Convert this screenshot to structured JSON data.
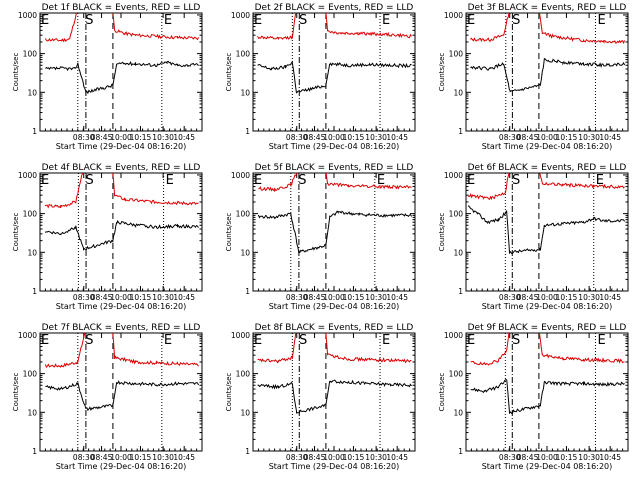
{
  "chart_data": {
    "type": "line",
    "start_time": "29-Dec-04 08:16:20",
    "xlabel": "Start Time (29-Dec-04 08:16:20)",
    "ylabel": "Counts/sec",
    "ylog": true,
    "ylim": [
      1,
      1000
    ],
    "y_tick_labels": [
      "1",
      "10",
      "100",
      "1000"
    ],
    "x_tick_labels": [
      "08:30",
      "08:45",
      "10:00",
      "10:15",
      "10:30",
      "10:45"
    ],
    "series_colors": {
      "events": "#000000",
      "lld": "#dd0000"
    },
    "panels": [
      {
        "title": "Det 1f BLACK = Events, RED = LLD",
        "markers": [
          {
            "label": "E",
            "time": "08:16"
          },
          {
            "label": "S",
            "time": "08:32"
          },
          {
            "label": "E",
            "time": "10:33"
          }
        ],
        "vlines": [
          {
            "time": "08:30",
            "style": "dotted"
          },
          {
            "time": "08:33",
            "style": "dash-dot"
          },
          {
            "time": "10:05",
            "style": "dashed"
          },
          {
            "time": "10:33",
            "style": "dotted"
          }
        ],
        "gap": [
          "08:34",
          "10:05"
        ],
        "events": [
          [
            8.3,
            40
          ],
          [
            8.4,
            42
          ],
          [
            8.48,
            40
          ],
          [
            8.5,
            55
          ],
          [
            8.55,
            10
          ],
          [
            10.08,
            15
          ],
          [
            10.12,
            55
          ],
          [
            10.3,
            55
          ],
          [
            10.5,
            50
          ],
          [
            10.6,
            60
          ],
          [
            10.7,
            50
          ],
          [
            10.8,
            50
          ],
          [
            10.9,
            52
          ]
        ],
        "lld": [
          [
            8.3,
            230
          ],
          [
            8.4,
            220
          ],
          [
            8.45,
            240
          ],
          [
            8.5,
            1500
          ],
          [
            10.06,
            1500
          ],
          [
            10.1,
            400
          ],
          [
            10.2,
            330
          ],
          [
            10.3,
            300
          ],
          [
            10.5,
            280
          ],
          [
            10.7,
            260
          ],
          [
            10.9,
            250
          ]
        ]
      },
      {
        "title": "Det 2f BLACK = Events, RED = LLD",
        "markers": [
          {
            "label": "E",
            "time": "08:16"
          },
          {
            "label": "S",
            "time": "08:35"
          },
          {
            "label": "E",
            "time": "10:36"
          }
        ],
        "vlines": [
          {
            "time": "08:33",
            "style": "dotted"
          },
          {
            "time": "08:36",
            "style": "dash-dot"
          },
          {
            "time": "10:05",
            "style": "dashed"
          },
          {
            "time": "10:36",
            "style": "dotted"
          }
        ],
        "gap": [
          "08:37",
          "10:05"
        ],
        "events": [
          [
            8.3,
            50
          ],
          [
            8.4,
            40
          ],
          [
            8.5,
            45
          ],
          [
            8.55,
            60
          ],
          [
            8.58,
            10
          ],
          [
            10.08,
            15
          ],
          [
            10.12,
            55
          ],
          [
            10.3,
            50
          ],
          [
            10.5,
            52
          ],
          [
            10.7,
            50
          ],
          [
            10.9,
            48
          ]
        ],
        "lld": [
          [
            8.3,
            270
          ],
          [
            8.45,
            240
          ],
          [
            8.55,
            270
          ],
          [
            8.58,
            1500
          ],
          [
            10.06,
            1500
          ],
          [
            10.1,
            380
          ],
          [
            10.2,
            340
          ],
          [
            10.4,
            330
          ],
          [
            10.6,
            320
          ],
          [
            10.9,
            280
          ]
        ]
      },
      {
        "title": "Det 3f BLACK = Events, RED = LLD",
        "markers": [
          {
            "label": "E",
            "time": "08:16"
          },
          {
            "label": "S",
            "time": "08:36"
          },
          {
            "label": "E",
            "time": "10:37"
          }
        ],
        "vlines": [
          {
            "time": "08:34",
            "style": "dotted"
          },
          {
            "time": "08:37",
            "style": "dash-dot"
          },
          {
            "time": "10:04",
            "style": "dashed"
          },
          {
            "time": "10:37",
            "style": "dotted"
          }
        ],
        "gap": [
          "08:38",
          "10:04"
        ],
        "events": [
          [
            8.3,
            45
          ],
          [
            8.45,
            40
          ],
          [
            8.55,
            55
          ],
          [
            8.6,
            10
          ],
          [
            10.08,
            15
          ],
          [
            10.12,
            70
          ],
          [
            10.3,
            60
          ],
          [
            10.5,
            55
          ],
          [
            10.7,
            50
          ],
          [
            10.9,
            55
          ]
        ],
        "lld": [
          [
            8.3,
            230
          ],
          [
            8.45,
            230
          ],
          [
            8.55,
            300
          ],
          [
            8.6,
            1500
          ],
          [
            10.06,
            1500
          ],
          [
            10.1,
            350
          ],
          [
            10.2,
            280
          ],
          [
            10.5,
            220
          ],
          [
            10.7,
            210
          ],
          [
            10.9,
            200
          ]
        ]
      },
      {
        "title": "Det 4f BLACK = Events, RED = LLD",
        "markers": [
          {
            "label": "E",
            "time": "08:16"
          },
          {
            "label": "S",
            "time": "08:33"
          },
          {
            "label": "E",
            "time": "10:34"
          }
        ],
        "vlines": [
          {
            "time": "08:31",
            "style": "dotted"
          },
          {
            "time": "08:34",
            "style": "dash-dot"
          },
          {
            "time": "10:05",
            "style": "dashed"
          },
          {
            "time": "10:34",
            "style": "dotted"
          }
        ],
        "gap": [
          "08:35",
          "10:05"
        ],
        "events": [
          [
            8.3,
            35
          ],
          [
            8.4,
            30
          ],
          [
            8.5,
            45
          ],
          [
            8.55,
            12
          ],
          [
            10.08,
            20
          ],
          [
            10.12,
            60
          ],
          [
            10.3,
            50
          ],
          [
            10.5,
            45
          ],
          [
            10.7,
            48
          ],
          [
            10.9,
            45
          ]
        ],
        "lld": [
          [
            8.3,
            160
          ],
          [
            8.4,
            150
          ],
          [
            8.5,
            200
          ],
          [
            8.55,
            1500
          ],
          [
            10.06,
            1500
          ],
          [
            10.1,
            300
          ],
          [
            10.2,
            230
          ],
          [
            10.5,
            200
          ],
          [
            10.7,
            190
          ],
          [
            10.9,
            180
          ]
        ]
      },
      {
        "title": "Det 5f BLACK = Events, RED = LLD",
        "markers": [
          {
            "label": "E",
            "time": "08:16"
          },
          {
            "label": "S",
            "time": "08:32"
          },
          {
            "label": "E",
            "time": "10:33"
          }
        ],
        "vlines": [
          {
            "time": "08:30",
            "style": "dotted"
          },
          {
            "time": "08:33",
            "style": "dash-dot"
          },
          {
            "time": "10:05",
            "style": "dashed"
          },
          {
            "time": "10:33",
            "style": "dotted"
          }
        ],
        "gap": [
          "08:34",
          "10:05"
        ],
        "events": [
          [
            8.3,
            85
          ],
          [
            8.4,
            80
          ],
          [
            8.5,
            100
          ],
          [
            8.55,
            10
          ],
          [
            10.08,
            15
          ],
          [
            10.12,
            80
          ],
          [
            10.2,
            110
          ],
          [
            10.4,
            95
          ],
          [
            10.6,
            90
          ],
          [
            10.9,
            90
          ]
        ],
        "lld": [
          [
            8.3,
            450
          ],
          [
            8.4,
            420
          ],
          [
            8.5,
            550
          ],
          [
            8.55,
            1500
          ],
          [
            10.06,
            1500
          ],
          [
            10.1,
            600
          ],
          [
            10.3,
            520
          ],
          [
            10.6,
            500
          ],
          [
            10.9,
            480
          ]
        ]
      },
      {
        "title": "Det 6f BLACK = Events, RED = LLD",
        "markers": [
          {
            "label": "E",
            "time": "08:16"
          },
          {
            "label": "S",
            "time": "08:35"
          },
          {
            "label": "E",
            "time": "10:36"
          }
        ],
        "vlines": [
          {
            "time": "08:33",
            "style": "dotted"
          },
          {
            "time": "08:36",
            "style": "dash-dot"
          },
          {
            "time": "10:04",
            "style": "dashed"
          },
          {
            "time": "10:36",
            "style": "dotted"
          }
        ],
        "gap": [
          "08:37",
          "10:04"
        ],
        "events": [
          [
            8.28,
            150
          ],
          [
            8.35,
            100
          ],
          [
            8.42,
            60
          ],
          [
            8.5,
            70
          ],
          [
            8.56,
            110
          ],
          [
            8.58,
            10
          ],
          [
            10.08,
            12
          ],
          [
            10.12,
            50
          ],
          [
            10.3,
            55
          ],
          [
            10.5,
            60
          ],
          [
            10.6,
            75
          ],
          [
            10.7,
            65
          ],
          [
            10.9,
            65
          ]
        ],
        "lld": [
          [
            8.28,
            300
          ],
          [
            8.35,
            270
          ],
          [
            8.45,
            250
          ],
          [
            8.55,
            350
          ],
          [
            8.58,
            1500
          ],
          [
            10.06,
            1500
          ],
          [
            10.1,
            600
          ],
          [
            10.3,
            560
          ],
          [
            10.6,
            520
          ],
          [
            10.9,
            480
          ]
        ]
      },
      {
        "title": "Det 7f BLACK = Events, RED = LLD",
        "markers": [
          {
            "label": "E",
            "time": "08:16"
          },
          {
            "label": "S",
            "time": "08:32"
          },
          {
            "label": "E",
            "time": "10:33"
          }
        ],
        "vlines": [
          {
            "time": "08:30",
            "style": "dotted"
          },
          {
            "time": "08:33",
            "style": "dash-dot"
          },
          {
            "time": "10:05",
            "style": "dashed"
          },
          {
            "time": "10:33",
            "style": "dotted"
          }
        ],
        "gap": [
          "08:34",
          "10:05"
        ],
        "events": [
          [
            8.3,
            45
          ],
          [
            8.4,
            40
          ],
          [
            8.5,
            55
          ],
          [
            8.55,
            12
          ],
          [
            10.08,
            15
          ],
          [
            10.12,
            60
          ],
          [
            10.3,
            55
          ],
          [
            10.5,
            52
          ],
          [
            10.7,
            55
          ],
          [
            10.9,
            55
          ]
        ],
        "lld": [
          [
            8.3,
            160
          ],
          [
            8.4,
            160
          ],
          [
            8.5,
            200
          ],
          [
            8.55,
            1500
          ],
          [
            10.06,
            1500
          ],
          [
            10.1,
            260
          ],
          [
            10.3,
            200
          ],
          [
            10.5,
            190
          ],
          [
            10.7,
            180
          ],
          [
            10.9,
            170
          ]
        ]
      },
      {
        "title": "Det 8f BLACK = Events, RED = LLD",
        "markers": [
          {
            "label": "E",
            "time": "08:16"
          },
          {
            "label": "S",
            "time": "08:35"
          },
          {
            "label": "E",
            "time": "10:36"
          }
        ],
        "vlines": [
          {
            "time": "08:33",
            "style": "dotted"
          },
          {
            "time": "08:36",
            "style": "dash-dot"
          },
          {
            "time": "10:05",
            "style": "dashed"
          },
          {
            "time": "10:36",
            "style": "dotted"
          }
        ],
        "gap": [
          "08:37",
          "10:05"
        ],
        "events": [
          [
            8.3,
            50
          ],
          [
            8.45,
            45
          ],
          [
            8.55,
            55
          ],
          [
            8.58,
            10
          ],
          [
            10.08,
            15
          ],
          [
            10.12,
            65
          ],
          [
            10.3,
            60
          ],
          [
            10.5,
            55
          ],
          [
            10.7,
            52
          ],
          [
            10.9,
            50
          ]
        ],
        "lld": [
          [
            8.3,
            220
          ],
          [
            8.45,
            210
          ],
          [
            8.55,
            260
          ],
          [
            8.58,
            1500
          ],
          [
            10.06,
            1500
          ],
          [
            10.1,
            300
          ],
          [
            10.3,
            240
          ],
          [
            10.5,
            230
          ],
          [
            10.7,
            220
          ],
          [
            10.9,
            210
          ]
        ]
      },
      {
        "title": "Det 9f BLACK = Events, RED = LLD",
        "markers": [
          {
            "label": "E",
            "time": "08:16"
          },
          {
            "label": "S",
            "time": "08:35"
          },
          {
            "label": "E",
            "time": "10:37"
          }
        ],
        "vlines": [
          {
            "time": "08:33",
            "style": "dotted"
          },
          {
            "time": "08:36",
            "style": "dash-dot"
          },
          {
            "time": "10:04",
            "style": "dashed"
          },
          {
            "time": "10:37",
            "style": "dotted"
          }
        ],
        "gap": [
          "08:37",
          "10:04"
        ],
        "events": [
          [
            8.3,
            40
          ],
          [
            8.4,
            35
          ],
          [
            8.5,
            45
          ],
          [
            8.56,
            70
          ],
          [
            8.58,
            10
          ],
          [
            10.08,
            15
          ],
          [
            10.12,
            60
          ],
          [
            10.3,
            55
          ],
          [
            10.5,
            55
          ],
          [
            10.7,
            52
          ],
          [
            10.9,
            55
          ]
        ],
        "lld": [
          [
            8.3,
            200
          ],
          [
            8.4,
            170
          ],
          [
            8.5,
            220
          ],
          [
            8.56,
            400
          ],
          [
            8.58,
            1500
          ],
          [
            10.06,
            1500
          ],
          [
            10.1,
            300
          ],
          [
            10.3,
            250
          ],
          [
            10.5,
            230
          ],
          [
            10.7,
            220
          ],
          [
            10.9,
            210
          ]
        ]
      }
    ]
  }
}
